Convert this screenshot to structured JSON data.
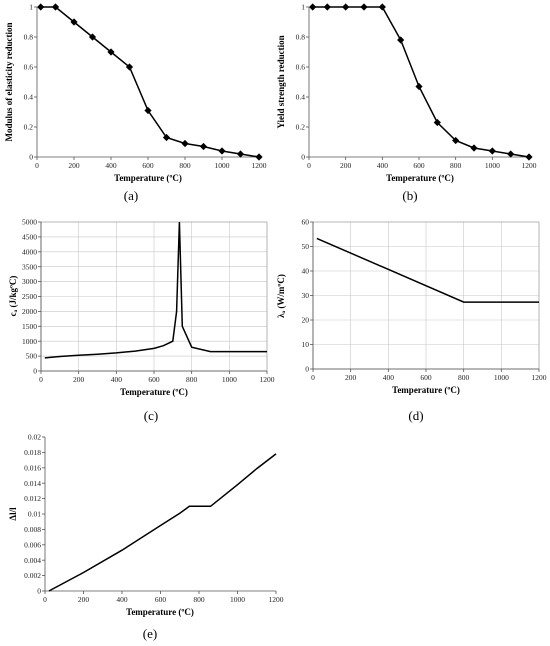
{
  "chart_data": [
    {
      "id": "a",
      "type": "line",
      "caption": "(a)",
      "xlabel": "Temperature (ºC)",
      "ylabel": "Modulus of elasticity reduction",
      "xlim": [
        0,
        1200
      ],
      "ylim": [
        0,
        1
      ],
      "xticks": [
        0,
        200,
        400,
        600,
        800,
        1000,
        1200
      ],
      "yticks": [
        0,
        0.2,
        0.4,
        0.6,
        0.8,
        1
      ],
      "ytick_labels": [
        "0",
        "0.2",
        "0.4",
        "0.6",
        "0.8",
        "1"
      ],
      "grid": false,
      "markers": true,
      "x": [
        20,
        100,
        200,
        300,
        400,
        500,
        600,
        700,
        800,
        900,
        1000,
        1100,
        1200
      ],
      "y": [
        1,
        1,
        0.9,
        0.8,
        0.7,
        0.6,
        0.31,
        0.13,
        0.09,
        0.07,
        0.04,
        0.02,
        0
      ]
    },
    {
      "id": "b",
      "type": "line",
      "caption": "(b)",
      "xlabel": "Temperature (ºC)",
      "ylabel": "Yield strength reduction",
      "xlim": [
        0,
        1200
      ],
      "ylim": [
        0,
        1
      ],
      "xticks": [
        0,
        200,
        400,
        600,
        800,
        1000,
        1200
      ],
      "yticks": [
        0,
        0.2,
        0.4,
        0.6,
        0.8,
        1
      ],
      "ytick_labels": [
        "0",
        "0.2",
        "0.4",
        "0.6",
        "0.8",
        "1"
      ],
      "grid": false,
      "markers": true,
      "x": [
        20,
        100,
        200,
        300,
        400,
        500,
        600,
        700,
        800,
        900,
        1000,
        1100,
        1200
      ],
      "y": [
        1,
        1,
        1,
        1,
        1,
        0.78,
        0.47,
        0.23,
        0.11,
        0.06,
        0.04,
        0.02,
        0
      ]
    },
    {
      "id": "c",
      "type": "line",
      "caption": "(c)",
      "xlabel": "Temperature (ºC)",
      "ylabel": "cₐ (J/kgºC)",
      "xlim": [
        0,
        1200
      ],
      "ylim": [
        0,
        5000
      ],
      "xticks": [
        0,
        200,
        400,
        600,
        800,
        1000,
        1200
      ],
      "yticks": [
        0,
        500,
        1000,
        1500,
        2000,
        2500,
        3000,
        3500,
        4000,
        4500,
        5000
      ],
      "ytick_labels": [
        "0",
        "500",
        "1000",
        "1500",
        "2000",
        "2500",
        "3000",
        "3500",
        "4000",
        "4500",
        "5000"
      ],
      "grid": true,
      "markers": false,
      "x": [
        20,
        100,
        200,
        300,
        400,
        500,
        600,
        650,
        700,
        720,
        735,
        750,
        800,
        900,
        1000,
        1100,
        1200
      ],
      "y": [
        440,
        488,
        530,
        565,
        606,
        667,
        760,
        850,
        1000,
        2000,
        5000,
        1500,
        800,
        650,
        650,
        650,
        650
      ]
    },
    {
      "id": "d",
      "type": "line",
      "caption": "(d)",
      "xlabel": "Temperature (ºC)",
      "ylabel": "λₐ (W/mºC)",
      "xlim": [
        0,
        1200
      ],
      "ylim": [
        0,
        60
      ],
      "xticks": [
        0,
        200,
        400,
        600,
        800,
        1000,
        1200
      ],
      "yticks": [
        0,
        10,
        20,
        30,
        40,
        50,
        60
      ],
      "ytick_labels": [
        "0",
        "10",
        "20",
        "30",
        "40",
        "50",
        "60"
      ],
      "grid": true,
      "markers": false,
      "x": [
        20,
        800,
        1200
      ],
      "y": [
        53.3,
        27.3,
        27.3
      ]
    },
    {
      "id": "e",
      "type": "line",
      "caption": "(e)",
      "xlabel": "Temperature (ºC)",
      "ylabel": "Δl/l",
      "xlim": [
        0,
        1200
      ],
      "ylim": [
        0,
        0.02
      ],
      "xticks": [
        0,
        200,
        400,
        600,
        800,
        1000,
        1200
      ],
      "yticks": [
        0,
        0.002,
        0.004,
        0.006,
        0.008,
        0.01,
        0.012,
        0.014,
        0.016,
        0.018,
        0.02
      ],
      "ytick_labels": [
        "0",
        "0.002",
        "0.004",
        "0.006",
        "0.008",
        "0.01",
        "0.012",
        "0.014",
        "0.016",
        "0.018",
        "0.02"
      ],
      "grid": false,
      "markers": false,
      "x": [
        20,
        200,
        400,
        600,
        700,
        750,
        860,
        1000,
        1100,
        1200
      ],
      "y": [
        0,
        0.0024,
        0.0053,
        0.0085,
        0.0101,
        0.011,
        0.011,
        0.0138,
        0.0159,
        0.0178
      ]
    }
  ]
}
